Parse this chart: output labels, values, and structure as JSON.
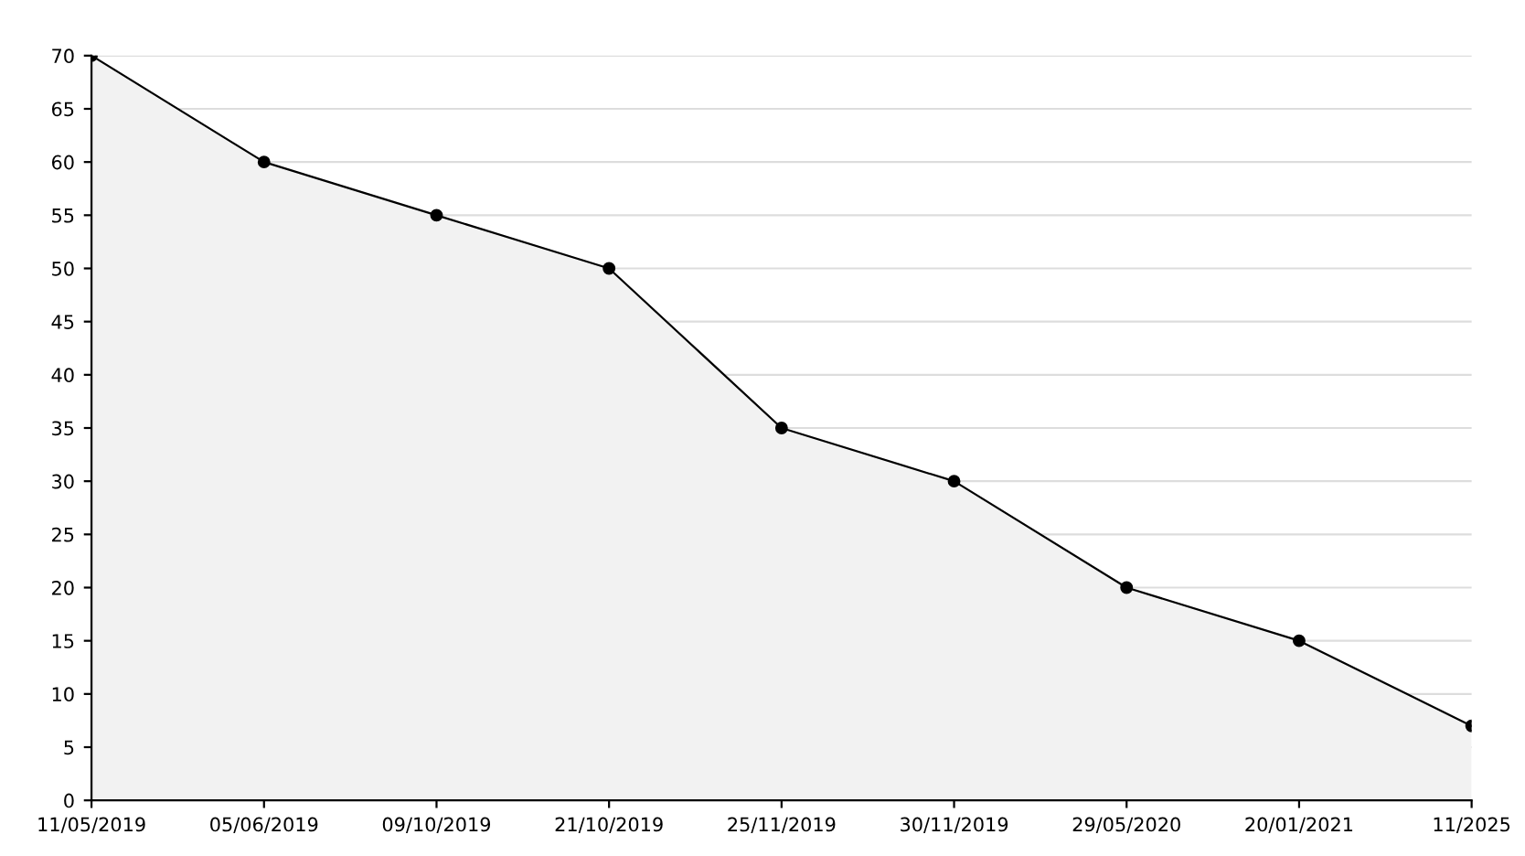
{
  "chart_data": {
    "type": "area",
    "categories": [
      "11/05/2019",
      "05/06/2019",
      "09/10/2019",
      "21/10/2019",
      "25/11/2019",
      "30/11/2019",
      "29/05/2020",
      "20/01/2021",
      "11/2025"
    ],
    "series": [
      {
        "color": "#000000",
        "values": [
          70,
          60,
          55,
          50,
          35,
          30,
          20,
          15,
          7
        ]
      }
    ],
    "ylim": [
      0,
      70
    ],
    "yticks": [
      0,
      5,
      10,
      15,
      20,
      25,
      30,
      35,
      40,
      45,
      50,
      55,
      60,
      65,
      70
    ],
    "grid": "y",
    "marker": "circle",
    "line_style": "solid"
  }
}
